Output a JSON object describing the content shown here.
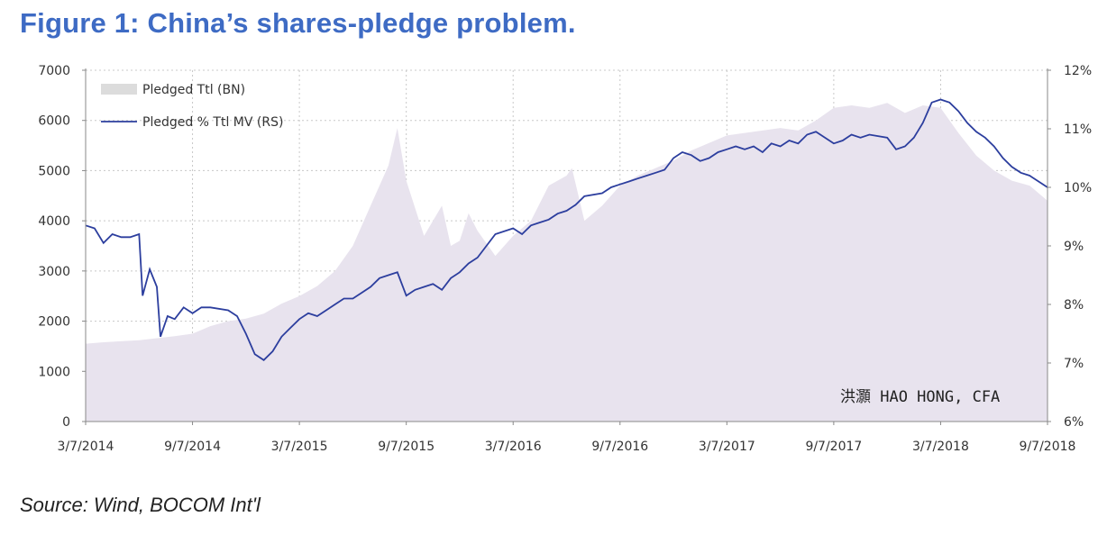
{
  "title": "Figure 1: China’s shares-pledge problem.",
  "source": "Source: Wind, BOCOM Int'l",
  "watermark": "洪灝 HAO HONG, CFA",
  "colors": {
    "title": "#3e6bc4",
    "area": "#e8e3ee",
    "line": "#2c3e9e",
    "grid": "#c8c8c8"
  },
  "chart_data": {
    "type": "area",
    "legend": [
      {
        "label": "Pledged Ttl (BN)",
        "style": "area"
      },
      {
        "label": "Pledged % Ttl MV (RS)",
        "style": "line"
      }
    ],
    "x_ticks": [
      "3/7/2014",
      "9/7/2014",
      "3/7/2015",
      "9/7/2015",
      "3/7/2016",
      "9/7/2016",
      "3/7/2017",
      "9/7/2017",
      "3/7/2018",
      "9/7/2018"
    ],
    "y_left": {
      "ticks": [
        "0",
        "1000",
        "2000",
        "3000",
        "4000",
        "5000",
        "6000",
        "7000"
      ],
      "range": [
        0,
        7000
      ]
    },
    "y_right": {
      "ticks": [
        "6%",
        "7%",
        "8%",
        "9%",
        "10%",
        "11%",
        "12%"
      ],
      "range": [
        6,
        12
      ]
    },
    "x_range": [
      0,
      54
    ],
    "grid": "dotted",
    "series": [
      {
        "name": "Pledged Ttl (BN)",
        "axis": "left",
        "points": [
          [
            0,
            1550
          ],
          [
            1,
            1580
          ],
          [
            3,
            1620
          ],
          [
            5,
            1700
          ],
          [
            6,
            1750
          ],
          [
            7,
            1900
          ],
          [
            8,
            2000
          ],
          [
            9,
            2050
          ],
          [
            10,
            2150
          ],
          [
            11,
            2350
          ],
          [
            12,
            2500
          ],
          [
            13,
            2700
          ],
          [
            14,
            3000
          ],
          [
            15,
            3500
          ],
          [
            16,
            4300
          ],
          [
            17,
            5100
          ],
          [
            17.5,
            5850
          ],
          [
            18,
            4800
          ],
          [
            19,
            3700
          ],
          [
            20,
            4300
          ],
          [
            20.5,
            3500
          ],
          [
            21,
            3600
          ],
          [
            21.5,
            4150
          ],
          [
            22,
            3800
          ],
          [
            23,
            3300
          ],
          [
            24,
            3700
          ],
          [
            25,
            4000
          ],
          [
            26,
            4700
          ],
          [
            27,
            4900
          ],
          [
            27.3,
            5050
          ],
          [
            28,
            4000
          ],
          [
            29,
            4300
          ],
          [
            30,
            4700
          ],
          [
            31,
            4900
          ],
          [
            32,
            5050
          ],
          [
            33,
            5200
          ],
          [
            34,
            5400
          ],
          [
            35,
            5550
          ],
          [
            36,
            5700
          ],
          [
            37,
            5750
          ],
          [
            38,
            5800
          ],
          [
            39,
            5850
          ],
          [
            40,
            5800
          ],
          [
            41,
            6000
          ],
          [
            42,
            6250
          ],
          [
            43,
            6300
          ],
          [
            44,
            6250
          ],
          [
            45,
            6350
          ],
          [
            46,
            6150
          ],
          [
            47,
            6300
          ],
          [
            48,
            6250
          ],
          [
            49,
            5750
          ],
          [
            50,
            5300
          ],
          [
            51,
            5000
          ],
          [
            52,
            4800
          ],
          [
            53,
            4700
          ],
          [
            54,
            4400
          ]
        ]
      },
      {
        "name": "Pledged % Ttl MV (RS)",
        "axis": "right",
        "points": [
          [
            0,
            9.35
          ],
          [
            0.5,
            9.3
          ],
          [
            1,
            9.05
          ],
          [
            1.5,
            9.2
          ],
          [
            2,
            9.15
          ],
          [
            2.5,
            9.15
          ],
          [
            3,
            9.2
          ],
          [
            3.2,
            8.15
          ],
          [
            3.6,
            8.6
          ],
          [
            4,
            8.3
          ],
          [
            4.2,
            7.45
          ],
          [
            4.6,
            7.8
          ],
          [
            5,
            7.75
          ],
          [
            5.5,
            7.95
          ],
          [
            6,
            7.85
          ],
          [
            6.5,
            7.95
          ],
          [
            7,
            7.95
          ],
          [
            8,
            7.9
          ],
          [
            8.5,
            7.8
          ],
          [
            9,
            7.5
          ],
          [
            9.5,
            7.15
          ],
          [
            10,
            7.05
          ],
          [
            10.5,
            7.2
          ],
          [
            11,
            7.45
          ],
          [
            11.5,
            7.6
          ],
          [
            12,
            7.75
          ],
          [
            12.5,
            7.85
          ],
          [
            13,
            7.8
          ],
          [
            13.5,
            7.9
          ],
          [
            14,
            8.0
          ],
          [
            14.5,
            8.1
          ],
          [
            15,
            8.1
          ],
          [
            15.5,
            8.2
          ],
          [
            16,
            8.3
          ],
          [
            16.5,
            8.45
          ],
          [
            17,
            8.5
          ],
          [
            17.5,
            8.55
          ],
          [
            18,
            8.15
          ],
          [
            18.5,
            8.25
          ],
          [
            19,
            8.3
          ],
          [
            19.5,
            8.35
          ],
          [
            20,
            8.25
          ],
          [
            20.5,
            8.45
          ],
          [
            21,
            8.55
          ],
          [
            21.5,
            8.7
          ],
          [
            22,
            8.8
          ],
          [
            23,
            9.2
          ],
          [
            24,
            9.3
          ],
          [
            24.5,
            9.2
          ],
          [
            25,
            9.35
          ],
          [
            25.5,
            9.4
          ],
          [
            26,
            9.45
          ],
          [
            26.5,
            9.55
          ],
          [
            27,
            9.6
          ],
          [
            27.5,
            9.7
          ],
          [
            28,
            9.85
          ],
          [
            29,
            9.9
          ],
          [
            29.5,
            10.0
          ],
          [
            30,
            10.05
          ],
          [
            30.5,
            10.1
          ],
          [
            31,
            10.15
          ],
          [
            31.5,
            10.2
          ],
          [
            32,
            10.25
          ],
          [
            32.5,
            10.3
          ],
          [
            33,
            10.5
          ],
          [
            33.5,
            10.6
          ],
          [
            34,
            10.55
          ],
          [
            34.5,
            10.45
          ],
          [
            35,
            10.5
          ],
          [
            35.5,
            10.6
          ],
          [
            36,
            10.65
          ],
          [
            36.5,
            10.7
          ],
          [
            37,
            10.65
          ],
          [
            37.5,
            10.7
          ],
          [
            38,
            10.6
          ],
          [
            38.5,
            10.75
          ],
          [
            39,
            10.7
          ],
          [
            39.5,
            10.8
          ],
          [
            40,
            10.75
          ],
          [
            40.5,
            10.9
          ],
          [
            41,
            10.95
          ],
          [
            41.5,
            10.85
          ],
          [
            42,
            10.75
          ],
          [
            42.5,
            10.8
          ],
          [
            43,
            10.9
          ],
          [
            43.5,
            10.85
          ],
          [
            44,
            10.9
          ],
          [
            45,
            10.85
          ],
          [
            45.5,
            10.65
          ],
          [
            46,
            10.7
          ],
          [
            46.5,
            10.85
          ],
          [
            47,
            11.1
          ],
          [
            47.5,
            11.45
          ],
          [
            48,
            11.5
          ],
          [
            48.5,
            11.45
          ],
          [
            49,
            11.3
          ],
          [
            49.5,
            11.1
          ],
          [
            50,
            10.95
          ],
          [
            50.5,
            10.85
          ],
          [
            51,
            10.7
          ],
          [
            51.5,
            10.5
          ],
          [
            52,
            10.35
          ],
          [
            52.5,
            10.25
          ],
          [
            53,
            10.2
          ],
          [
            53.5,
            10.1
          ],
          [
            54,
            10.0
          ]
        ]
      }
    ]
  }
}
